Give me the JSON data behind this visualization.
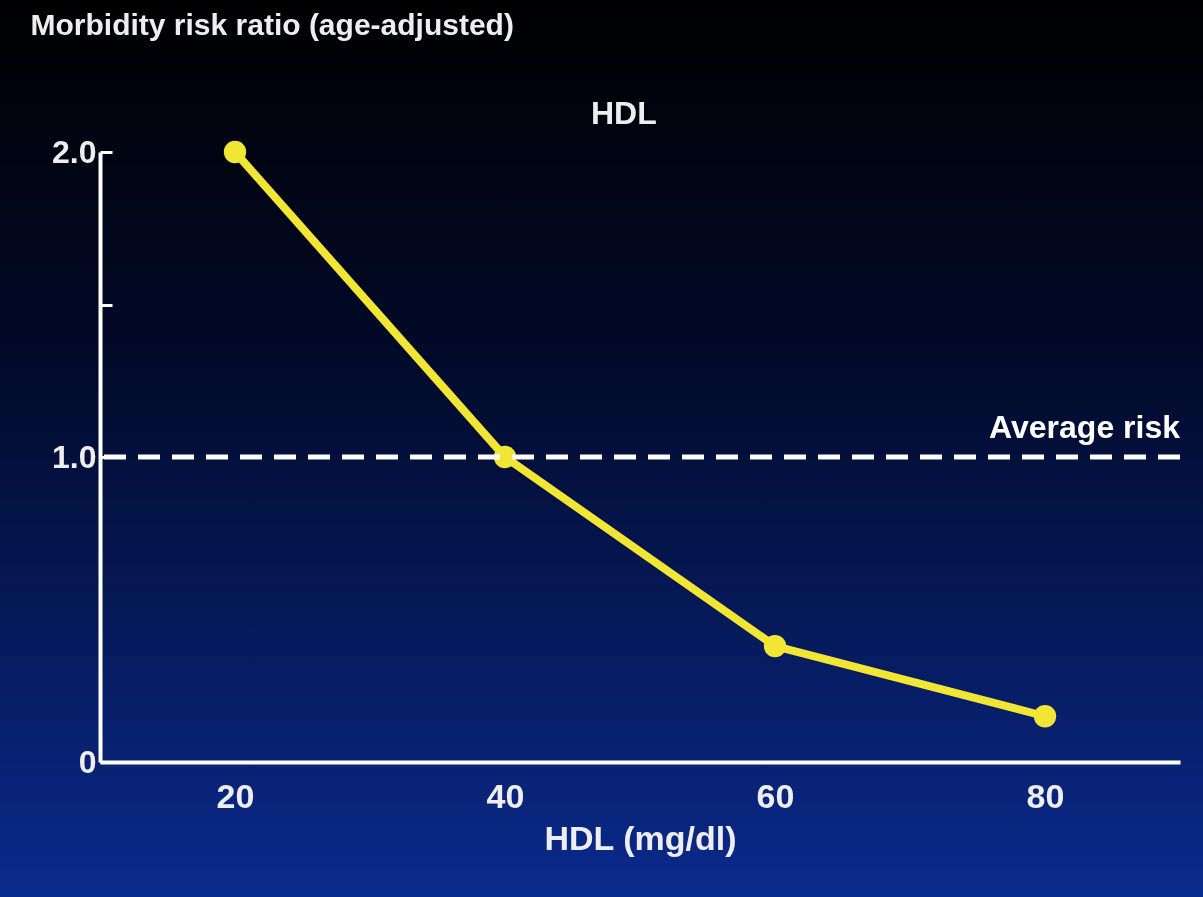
{
  "chart_data": {
    "type": "line",
    "title": "HDL",
    "xlabel": "HDL (mg/dl)",
    "ylabel": "Morbidity risk ratio (age-adjusted)",
    "x": [
      20,
      40,
      60,
      80
    ],
    "series": [
      {
        "color": "#f2e635",
        "values": [
          2.0,
          1.0,
          0.38,
          0.15
        ]
      }
    ],
    "xlim": [
      10,
      90
    ],
    "xticks": [
      20,
      40,
      60,
      80
    ],
    "ylim": [
      0,
      2
    ],
    "yticks": [
      {
        "value": 0,
        "label": "0"
      },
      {
        "value": 1,
        "label": "1.0"
      },
      {
        "value": 1.5,
        "label": null
      },
      {
        "value": 2,
        "label": "2.0"
      }
    ],
    "ref_lines": [
      {
        "axis": "y",
        "value": 1,
        "label": "Average risk",
        "color": "#ffffff",
        "line_style": "dashed"
      }
    ],
    "marker": "circle",
    "line_style": "solid",
    "grid": false,
    "legend": false
  }
}
